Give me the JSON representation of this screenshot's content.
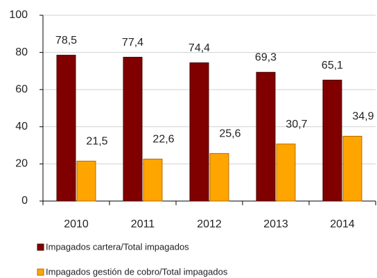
{
  "chart_data": {
    "type": "bar",
    "categories": [
      "2010",
      "2011",
      "2012",
      "2013",
      "2014"
    ],
    "series": [
      {
        "name": "Impagados cartera/Total impagados",
        "color": "#800000",
        "values": [
          78.5,
          77.4,
          74.4,
          69.3,
          65.1
        ],
        "value_labels": [
          "78,5",
          "77,4",
          "74,4",
          "69,3",
          "65,1"
        ]
      },
      {
        "name": "Impagados gestión de cobro/Total impagados",
        "color": "#ffa500",
        "values": [
          21.5,
          22.6,
          25.6,
          30.7,
          34.9
        ],
        "value_labels": [
          "21,5",
          "22,6",
          "25,6",
          "30,7",
          "34,9"
        ]
      }
    ],
    "ylim": [
      0,
      100
    ],
    "yticks": [
      0,
      20,
      40,
      60,
      80,
      100
    ],
    "grid": true
  }
}
